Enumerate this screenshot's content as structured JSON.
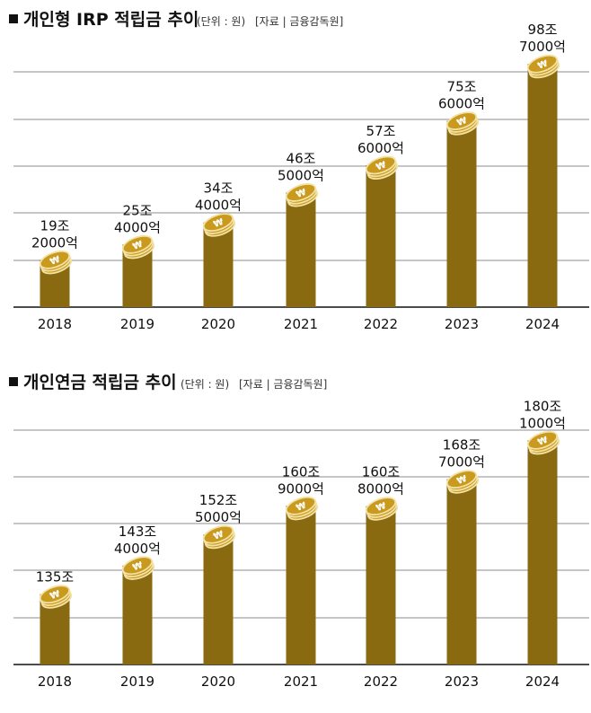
{
  "colors": {
    "bar": "#8a6a10",
    "coin_face": "#c99a1e",
    "coin_edge": "#f3e2a6",
    "coin_symbol": "#ffffff",
    "grid": "#8c8c8c",
    "axis": "#111111"
  },
  "chart_data": [
    {
      "type": "bar",
      "title": "개인형 IRP 적립금 추이",
      "unit_note": "(단위 : 원)",
      "source_note": "[자료 | 금융감독원]",
      "categories": [
        "2018",
        "2019",
        "2020",
        "2021",
        "2022",
        "2023",
        "2024"
      ],
      "values": [
        19.2,
        25.4,
        34.4,
        46.5,
        57.6,
        75.6,
        98.7
      ],
      "value_labels": [
        [
          "19조",
          "2000억"
        ],
        [
          "25조",
          "4000억"
        ],
        [
          "34조",
          "4000억"
        ],
        [
          "46조",
          "5000억"
        ],
        [
          "57조",
          "6000억"
        ],
        [
          "75조",
          "6000억"
        ],
        [
          "98조",
          "7000억"
        ]
      ],
      "ylim": [
        0,
        113
      ],
      "grid": true
    },
    {
      "type": "bar",
      "title": "개인연금 적립금 추이",
      "unit_note": "(단위 : 원)",
      "source_note": "[자료 | 금융감독원]",
      "categories": [
        "2018",
        "2019",
        "2020",
        "2021",
        "2022",
        "2023",
        "2024"
      ],
      "values": [
        135.0,
        143.4,
        152.5,
        160.9,
        160.8,
        168.7,
        180.1
      ],
      "value_labels": [
        [
          "135조"
        ],
        [
          "143조",
          "4000억"
        ],
        [
          "152조",
          "5000억"
        ],
        [
          "160조",
          "9000억"
        ],
        [
          "160조",
          "8000억"
        ],
        [
          "168조",
          "7000억"
        ],
        [
          "180조",
          "1000억"
        ]
      ],
      "ylim": [
        114.4,
        194.4
      ],
      "grid": true
    }
  ]
}
